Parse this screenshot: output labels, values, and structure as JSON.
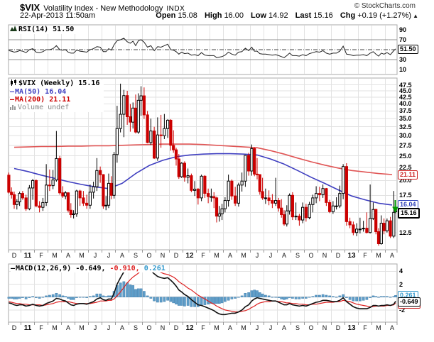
{
  "header": {
    "symbol": "$VIX",
    "title": "Volatility Index - New Methodology",
    "exchange": "INDX",
    "credit": "© StockCharts.com",
    "datetime": "22-Apr-2013 11:50am",
    "quote": {
      "open_label": "Open",
      "open": "15.08",
      "high_label": "High",
      "high": "16.00",
      "low_label": "Low",
      "low": "14.92",
      "last_label": "Last",
      "last": "15.16",
      "chg_label": "Chg",
      "chg": "+0.19 (+1.27%)",
      "arrow": "▲"
    }
  },
  "rsi_panel": {
    "label": "RSI(14) 51.50",
    "badge": "51.50",
    "axis": [
      "90",
      "70",
      "30",
      "10"
    ],
    "overbought": 70,
    "oversold": 30,
    "midline": 50
  },
  "main_panel": {
    "legend": {
      "symbol": "$VIX (Weekly) 15.16",
      "ma50": "MA(50) 16.04",
      "ma200": "MA(200) 21.11",
      "volume": "Volume undef"
    },
    "axis": [
      "47.5",
      "45.0",
      "42.5",
      "40.0",
      "37.5",
      "35.0",
      "32.5",
      "30.0",
      "27.5",
      "25.0",
      "22.5",
      "20.0",
      "17.5",
      "12.5"
    ],
    "badges": {
      "ma200": "21.11",
      "ma50": "16.04",
      "last": "15.16"
    }
  },
  "macd_panel": {
    "label": "MACD(12,26,9)",
    "v1": "-0.649,",
    "v2": "-0.910,",
    "v3": "0.261",
    "axis": [
      "4",
      "2",
      "-2"
    ],
    "badges": {
      "hist": "0.261",
      "macd": "-0.649",
      "signal": "-0.910"
    }
  },
  "colors": {
    "candle_up": "#000000",
    "candle_down": "#cc0000",
    "ma50": "#3f3fc0",
    "ma200": "#e05555",
    "rsi_line": "#222222",
    "macd_line": "#111111",
    "signal_line": "#dd2222",
    "histogram": "#5f9ec9",
    "histogram_border": "#417fae",
    "badge_blue": "#3344bb",
    "badge_red": "#cc2222",
    "badge_lightblue": "#3399cc",
    "grid": "#e2e2e2",
    "band_line": "#909090",
    "panel_border": "#a8a8a8",
    "arrow_green": "#009900",
    "volume_text": "#888888"
  },
  "chart_data": {
    "type": "candlestick",
    "timeframe": "weekly",
    "months": [
      "D",
      "11",
      "F",
      "M",
      "A",
      "M",
      "J",
      "J",
      "A",
      "S",
      "O",
      "N",
      "D",
      "12",
      "F",
      "M",
      "A",
      "M",
      "J",
      "J",
      "A",
      "S",
      "O",
      "N",
      "D",
      "13",
      "F",
      "M",
      "A"
    ],
    "year_indices": [
      1,
      13,
      25
    ],
    "weeks_per_month": [
      5,
      4,
      4,
      4,
      5,
      4,
      4,
      5,
      4,
      5,
      4,
      4,
      5,
      4,
      4,
      5,
      4,
      4,
      5,
      4,
      5,
      4,
      4,
      4,
      4,
      4,
      4,
      5,
      4
    ],
    "price": {
      "ylog": true,
      "yrange": [
        10.7,
        50.5
      ],
      "gridline_step": 2.5,
      "gridline_min": 12.5,
      "gridline_max": 47.5,
      "last": 15.16,
      "ma50_last": 16.04,
      "ma200_last": 21.11,
      "candles": [
        [
          21.0,
          21.5,
          17.8,
          18.0
        ],
        [
          18.0,
          18.8,
          17.0,
          17.6
        ],
        [
          17.6,
          18.1,
          15.5,
          16.1
        ],
        [
          16.1,
          16.9,
          15.4,
          16.5
        ],
        [
          16.5,
          18.1,
          15.9,
          17.8
        ],
        [
          17.8,
          18.2,
          16.8,
          17.1
        ],
        [
          17.1,
          17.6,
          15.2,
          15.5
        ],
        [
          15.5,
          19.2,
          15.3,
          18.7
        ],
        [
          18.7,
          20.3,
          16.8,
          20.0
        ],
        [
          20.0,
          20.2,
          15.7,
          15.9
        ],
        [
          15.9,
          16.6,
          15.0,
          15.7
        ],
        [
          15.7,
          17.1,
          15.2,
          16.4
        ],
        [
          16.4,
          23.2,
          15.9,
          19.2
        ],
        [
          19.2,
          22.1,
          18.2,
          19.1
        ],
        [
          19.1,
          22.0,
          18.5,
          20.1
        ],
        [
          20.1,
          31.3,
          19.8,
          24.4
        ],
        [
          24.4,
          25.0,
          17.6,
          17.9
        ],
        [
          17.9,
          19.0,
          17.1,
          17.4
        ],
        [
          17.4,
          18.2,
          16.9,
          17.9
        ],
        [
          17.9,
          18.0,
          15.0,
          15.3
        ],
        [
          15.3,
          16.3,
          14.3,
          14.7
        ],
        [
          14.7,
          15.3,
          14.2,
          14.8
        ],
        [
          14.8,
          18.4,
          14.4,
          18.2
        ],
        [
          18.2,
          18.4,
          15.9,
          17.1
        ],
        [
          17.1,
          18.2,
          15.9,
          16.3
        ],
        [
          16.3,
          17.6,
          15.5,
          16.0
        ],
        [
          16.0,
          19.3,
          15.5,
          18.0
        ],
        [
          18.0,
          19.8,
          17.0,
          18.9
        ],
        [
          18.9,
          24.5,
          18.2,
          21.9
        ],
        [
          21.9,
          22.7,
          19.6,
          21.1
        ],
        [
          21.1,
          21.2,
          15.5,
          15.9
        ],
        [
          15.9,
          17.4,
          15.3,
          16.0
        ],
        [
          16.0,
          21.3,
          15.6,
          19.5
        ],
        [
          19.5,
          20.8,
          16.9,
          17.5
        ],
        [
          17.5,
          25.9,
          17.0,
          25.3
        ],
        [
          25.3,
          39.3,
          23.5,
          32.0
        ],
        [
          32.0,
          48.0,
          30.9,
          36.4
        ],
        [
          36.4,
          45.4,
          29.6,
          43.1
        ],
        [
          43.1,
          45.0,
          33.1,
          35.6
        ],
        [
          35.6,
          39.9,
          31.1,
          33.9
        ],
        [
          33.9,
          40.5,
          32.0,
          38.5
        ],
        [
          38.5,
          43.5,
          30.6,
          31.0
        ],
        [
          31.0,
          44.0,
          30.5,
          41.3
        ],
        [
          41.3,
          46.9,
          35.9,
          43.0
        ],
        [
          43.0,
          46.4,
          34.9,
          36.2
        ],
        [
          36.2,
          37.5,
          28.0,
          28.2
        ],
        [
          28.2,
          35.0,
          27.6,
          31.3
        ],
        [
          31.3,
          32.5,
          24.3,
          24.5
        ],
        [
          24.5,
          35.4,
          23.9,
          30.2
        ],
        [
          30.2,
          36.2,
          26.9,
          30.0
        ],
        [
          30.0,
          36.5,
          29.1,
          32.0
        ],
        [
          32.0,
          34.8,
          29.4,
          34.5
        ],
        [
          34.5,
          34.8,
          26.2,
          27.5
        ],
        [
          27.5,
          31.5,
          25.7,
          26.4
        ],
        [
          26.4,
          26.9,
          22.9,
          24.3
        ],
        [
          24.3,
          25.4,
          20.3,
          20.7
        ],
        [
          20.7,
          23.6,
          20.5,
          23.4
        ],
        [
          23.4,
          23.8,
          19.8,
          20.6
        ],
        [
          20.6,
          22.3,
          19.5,
          20.9
        ],
        [
          20.9,
          21.3,
          18.0,
          18.3
        ],
        [
          18.3,
          19.9,
          17.4,
          18.5
        ],
        [
          18.5,
          18.7,
          16.1,
          17.1
        ],
        [
          17.1,
          21.1,
          16.6,
          20.8
        ],
        [
          20.8,
          21.0,
          17.1,
          17.8
        ],
        [
          17.8,
          18.6,
          16.3,
          17.3
        ],
        [
          17.3,
          18.6,
          16.5,
          17.3
        ],
        [
          17.3,
          18.0,
          15.6,
          17.1
        ],
        [
          17.1,
          17.3,
          13.7,
          14.5
        ],
        [
          14.5,
          15.9,
          13.8,
          14.8
        ],
        [
          14.8,
          16.2,
          14.0,
          15.5
        ],
        [
          15.5,
          17.2,
          15.0,
          16.7
        ],
        [
          16.7,
          21.1,
          15.8,
          19.9
        ],
        [
          19.9,
          20.2,
          16.8,
          17.4
        ],
        [
          17.4,
          18.9,
          15.9,
          16.3
        ],
        [
          16.3,
          19.6,
          15.8,
          19.2
        ],
        [
          19.2,
          21.5,
          18.1,
          19.9
        ],
        [
          19.9,
          25.2,
          18.9,
          25.1
        ],
        [
          25.1,
          25.7,
          20.9,
          21.8
        ],
        [
          21.8,
          27.7,
          20.9,
          26.7
        ],
        [
          26.7,
          27.0,
          20.8,
          21.2
        ],
        [
          21.2,
          24.5,
          20.2,
          21.1
        ],
        [
          21.1,
          21.2,
          17.6,
          18.1
        ],
        [
          18.1,
          20.5,
          16.8,
          17.1
        ],
        [
          17.1,
          18.6,
          16.2,
          17.1
        ],
        [
          17.1,
          18.3,
          16.0,
          16.7
        ],
        [
          16.7,
          17.7,
          15.6,
          16.3
        ],
        [
          16.3,
          20.5,
          15.9,
          16.7
        ],
        [
          16.7,
          17.1,
          15.1,
          15.6
        ],
        [
          15.6,
          16.9,
          14.3,
          14.7
        ],
        [
          14.7,
          15.3,
          13.3,
          13.5
        ],
        [
          13.5,
          16.0,
          13.2,
          15.2
        ],
        [
          15.2,
          17.8,
          14.7,
          17.5
        ],
        [
          17.5,
          18.0,
          14.0,
          14.4
        ],
        [
          14.4,
          16.4,
          14.0,
          14.5
        ],
        [
          14.5,
          14.8,
          13.3,
          14.0
        ],
        [
          14.0,
          16.4,
          13.6,
          15.7
        ],
        [
          15.7,
          16.2,
          13.8,
          14.3
        ],
        [
          14.3,
          16.5,
          14.1,
          16.1
        ],
        [
          16.1,
          17.6,
          15.0,
          17.1
        ],
        [
          17.1,
          19.0,
          16.3,
          17.8
        ],
        [
          17.8,
          18.9,
          16.6,
          17.6
        ],
        [
          17.6,
          19.3,
          17.1,
          18.6
        ],
        [
          18.6,
          18.7,
          15.9,
          16.4
        ],
        [
          16.4,
          16.8,
          14.9,
          15.1
        ],
        [
          15.1,
          16.6,
          14.8,
          15.9
        ],
        [
          15.9,
          17.2,
          15.4,
          15.9
        ],
        [
          15.9,
          19.1,
          15.6,
          17.8
        ],
        [
          17.8,
          23.2,
          16.9,
          22.7
        ],
        [
          22.7,
          23.4,
          13.3,
          13.8
        ],
        [
          13.8,
          14.3,
          13.0,
          13.4
        ],
        [
          13.4,
          13.8,
          12.2,
          12.5
        ],
        [
          12.5,
          13.6,
          12.1,
          12.9
        ],
        [
          12.9,
          14.3,
          12.4,
          12.9
        ],
        [
          13.0,
          13.9,
          12.6,
          13.0
        ],
        [
          13.0,
          15.0,
          12.4,
          12.5
        ],
        [
          12.5,
          19.3,
          12.4,
          14.2
        ],
        [
          14.2,
          16.4,
          14.0,
          15.4
        ],
        [
          15.4,
          15.5,
          12.3,
          12.6
        ],
        [
          12.6,
          13.0,
          11.1,
          11.3
        ],
        [
          11.3,
          14.6,
          11.2,
          13.6
        ],
        [
          13.6,
          14.2,
          12.3,
          12.7
        ],
        [
          12.7,
          14.2,
          12.5,
          13.9
        ],
        [
          13.9,
          14.4,
          11.9,
          12.1
        ],
        [
          12.1,
          18.2,
          11.9,
          15.0
        ],
        [
          15.1,
          16.0,
          14.9,
          15.2
        ]
      ],
      "ma50_monthly": [
        22.3,
        21.7,
        21.0,
        20.4,
        19.8,
        19.3,
        18.9,
        18.6,
        19.5,
        21.3,
        22.9,
        24.0,
        24.8,
        25.2,
        25.4,
        25.5,
        25.5,
        25.4,
        25.2,
        24.3,
        23.2,
        21.9,
        20.6,
        19.5,
        18.4,
        17.4,
        16.8,
        16.3,
        16.04
      ],
      "ma200_monthly": [
        27.0,
        27.1,
        27.2,
        27.2,
        27.3,
        27.3,
        27.4,
        27.4,
        27.5,
        27.6,
        27.7,
        27.8,
        27.8,
        27.8,
        27.7,
        27.5,
        27.3,
        27.1,
        26.9,
        26.2,
        25.4,
        24.5,
        23.7,
        23.0,
        22.4,
        21.9,
        21.6,
        21.3,
        21.11
      ]
    },
    "rsi": {
      "last": 51.5,
      "values": [
        48,
        47,
        45,
        46,
        48,
        47,
        44,
        50,
        52,
        45,
        44,
        46,
        50,
        50,
        52,
        58,
        50,
        49,
        50,
        45,
        43,
        43,
        49,
        47,
        46,
        45,
        50,
        52,
        56,
        55,
        46,
        46,
        52,
        49,
        60,
        68,
        70,
        73,
        66,
        63,
        67,
        58,
        68,
        70,
        65,
        55,
        58,
        48,
        56,
        55,
        58,
        61,
        50,
        49,
        46,
        41,
        45,
        42,
        43,
        39,
        40,
        38,
        44,
        39,
        38,
        38,
        38,
        34,
        35,
        36,
        39,
        45,
        41,
        39,
        45,
        46,
        53,
        48,
        55,
        47,
        47,
        42,
        41,
        41,
        40,
        39,
        40,
        38,
        36,
        34,
        38,
        43,
        38,
        38,
        37,
        40,
        38,
        42,
        44,
        46,
        45,
        48,
        43,
        41,
        43,
        43,
        47,
        57,
        41,
        40,
        38,
        39,
        39,
        40,
        38,
        43,
        46,
        41,
        37,
        43,
        41,
        44,
        40,
        48,
        51.5
      ]
    },
    "macd": {
      "last_macd": -0.649,
      "last_signal": -0.91,
      "last_hist": 0.261,
      "macd": [
        -0.9,
        -1.0,
        -1.2,
        -1.3,
        -1.2,
        -1.2,
        -1.4,
        -1.3,
        -1.1,
        -1.3,
        -1.4,
        -1.3,
        -1.0,
        -0.8,
        -0.6,
        -0.2,
        -0.3,
        -0.5,
        -0.6,
        -0.9,
        -1.2,
        -1.3,
        -1.1,
        -1.0,
        -1.0,
        -1.1,
        -0.9,
        -0.7,
        -0.3,
        -0.1,
        -0.4,
        -0.5,
        -0.3,
        -0.3,
        0.6,
        2.0,
        3.0,
        3.9,
        4.4,
        4.6,
        4.9,
        4.6,
        5.0,
        5.4,
        5.2,
        4.6,
        4.1,
        3.6,
        3.2,
        3.0,
        2.9,
        3.0,
        2.6,
        2.2,
        1.7,
        1.1,
        0.8,
        0.4,
        0.1,
        -0.4,
        -0.8,
        -1.2,
        -1.3,
        -1.5,
        -1.7,
        -1.9,
        -2.1,
        -2.4,
        -2.6,
        -2.7,
        -2.7,
        -2.6,
        -2.5,
        -2.5,
        -2.3,
        -2.0,
        -1.5,
        -1.2,
        -0.6,
        -0.3,
        -0.1,
        -0.2,
        -0.3,
        -0.4,
        -0.5,
        -0.6,
        -0.6,
        -0.8,
        -1.0,
        -1.2,
        -1.2,
        -1.0,
        -1.2,
        -1.3,
        -1.4,
        -1.3,
        -1.4,
        -1.2,
        -1.0,
        -0.8,
        -0.7,
        -0.5,
        -0.5,
        -0.6,
        -0.7,
        -0.7,
        -0.5,
        -0.1,
        -0.7,
        -1.1,
        -1.5,
        -1.7,
        -1.8,
        -1.8,
        -1.8,
        -1.6,
        -1.3,
        -1.3,
        -1.4,
        -1.3,
        -1.3,
        -1.2,
        -1.3,
        -1.1,
        -0.649
      ],
      "signal": [
        -0.7,
        -0.8,
        -0.9,
        -1.0,
        -1.0,
        -1.1,
        -1.1,
        -1.2,
        -1.2,
        -1.2,
        -1.2,
        -1.3,
        -1.2,
        -1.1,
        -1.0,
        -0.8,
        -0.7,
        -0.7,
        -0.7,
        -0.7,
        -0.8,
        -0.9,
        -1.0,
        -1.0,
        -1.0,
        -1.0,
        -1.0,
        -0.9,
        -0.8,
        -0.6,
        -0.6,
        -0.6,
        -0.5,
        -0.5,
        -0.3,
        0.2,
        0.8,
        1.5,
        2.2,
        2.7,
        3.1,
        3.4,
        3.7,
        4.1,
        4.3,
        4.4,
        4.3,
        4.2,
        4.0,
        3.8,
        3.6,
        3.5,
        3.3,
        3.1,
        2.8,
        2.4,
        2.1,
        1.8,
        1.4,
        1.1,
        0.7,
        0.3,
        0.0,
        -0.3,
        -0.6,
        -0.9,
        -1.1,
        -1.4,
        -1.6,
        -1.8,
        -2.0,
        -2.1,
        -2.2,
        -2.3,
        -2.3,
        -2.2,
        -2.1,
        -1.9,
        -1.6,
        -1.4,
        -1.1,
        -0.9,
        -0.8,
        -0.7,
        -0.7,
        -0.6,
        -0.6,
        -0.7,
        -0.7,
        -0.8,
        -0.9,
        -0.9,
        -1.0,
        -1.0,
        -1.1,
        -1.1,
        -1.2,
        -1.2,
        -1.1,
        -1.1,
        -1.0,
        -0.9,
        -0.8,
        -0.8,
        -0.8,
        -0.7,
        -0.7,
        -0.5,
        -0.6,
        -0.7,
        -0.9,
        -1.1,
        -1.2,
        -1.3,
        -1.4,
        -1.5,
        -1.5,
        -1.4,
        -1.4,
        -1.4,
        -1.4,
        -1.3,
        -1.3,
        -1.2,
        -0.91
      ],
      "gridlines": [
        4,
        2,
        0,
        -2
      ]
    }
  }
}
